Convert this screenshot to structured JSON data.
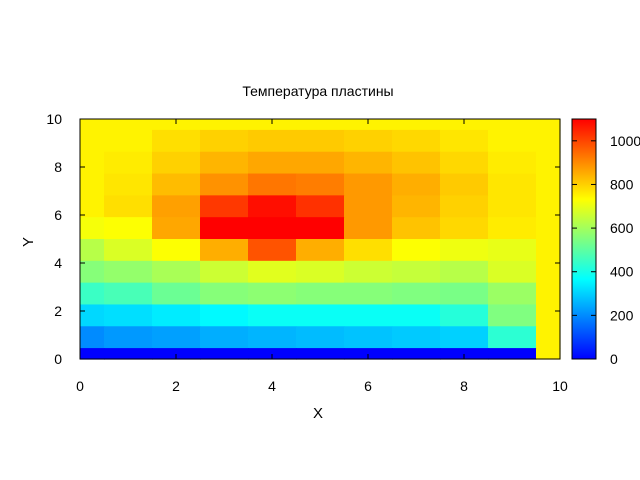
{
  "chart_data": {
    "type": "heatmap",
    "title": "Температура пластины",
    "xlabel": "X",
    "ylabel": "Y",
    "xlim": [
      0,
      10
    ],
    "ylim": [
      0,
      10
    ],
    "x_ticks": [
      "0",
      "2",
      "4",
      "6",
      "8",
      "10"
    ],
    "y_ticks": [
      "0",
      "2",
      "4",
      "6",
      "8",
      "10"
    ],
    "colorbar": {
      "range": [
        0,
        1100
      ],
      "ticks": [
        "0",
        "200",
        "400",
        "600",
        "800",
        "1000"
      ],
      "colors": [
        "#0000ff",
        "#00ffff",
        "#ffff00",
        "#ff0000"
      ]
    },
    "grid": false,
    "values": [
      [
        750,
        750,
        750,
        750,
        750,
        750,
        750,
        750,
        750,
        750,
        750
      ],
      [
        750,
        750,
        780,
        800,
        810,
        810,
        800,
        790,
        770,
        750,
        750
      ],
      [
        750,
        760,
        800,
        840,
        860,
        860,
        840,
        820,
        790,
        760,
        750
      ],
      [
        750,
        770,
        830,
        890,
        930,
        920,
        880,
        850,
        810,
        770,
        750
      ],
      [
        750,
        780,
        870,
        1020,
        1080,
        1030,
        880,
        840,
        800,
        770,
        750
      ],
      [
        720,
        730,
        860,
        1100,
        1100,
        1100,
        880,
        820,
        790,
        760,
        750
      ],
      [
        630,
        680,
        730,
        850,
        980,
        850,
        780,
        730,
        710,
        700,
        750
      ],
      [
        560,
        580,
        610,
        660,
        690,
        680,
        660,
        650,
        630,
        680,
        750
      ],
      [
        450,
        470,
        520,
        560,
        570,
        560,
        560,
        550,
        540,
        590,
        750
      ],
      [
        310,
        320,
        340,
        360,
        380,
        380,
        380,
        380,
        420,
        550,
        750
      ],
      [
        200,
        220,
        230,
        250,
        260,
        270,
        280,
        290,
        300,
        430,
        750
      ],
      [
        0,
        0,
        0,
        0,
        0,
        0,
        0,
        0,
        0,
        0,
        750
      ]
    ]
  }
}
